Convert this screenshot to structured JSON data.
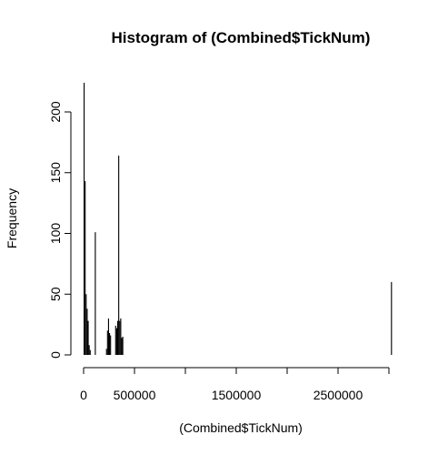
{
  "chart_data": {
    "type": "bar",
    "title": "Histogram of (Combined$TickNum)",
    "xlabel": "(Combined$TickNum)",
    "ylabel": "Frequency",
    "xlim": [
      0,
      3000000
    ],
    "ylim": [
      0,
      225
    ],
    "x_ticks": [
      0,
      500000,
      1000000,
      1500000,
      2000000,
      2500000,
      3000000
    ],
    "x_tick_labels": [
      "0",
      "500000",
      "",
      "1500000",
      "",
      "2500000",
      ""
    ],
    "y_ticks": [
      0,
      50,
      100,
      150,
      200
    ],
    "y_tick_labels": [
      "0",
      "50",
      "100",
      "150",
      "200"
    ],
    "grid": false,
    "bin_width": 10000,
    "bins": [
      {
        "x0": 0,
        "x1": 10000,
        "count": 224
      },
      {
        "x0": 10000,
        "x1": 20000,
        "count": 143
      },
      {
        "x0": 20000,
        "x1": 30000,
        "count": 50
      },
      {
        "x0": 30000,
        "x1": 40000,
        "count": 38
      },
      {
        "x0": 40000,
        "x1": 50000,
        "count": 28
      },
      {
        "x0": 50000,
        "x1": 60000,
        "count": 8
      },
      {
        "x0": 60000,
        "x1": 70000,
        "count": 4
      },
      {
        "x0": 110000,
        "x1": 120000,
        "count": 101
      },
      {
        "x0": 220000,
        "x1": 230000,
        "count": 5
      },
      {
        "x0": 230000,
        "x1": 240000,
        "count": 20
      },
      {
        "x0": 240000,
        "x1": 250000,
        "count": 30
      },
      {
        "x0": 250000,
        "x1": 260000,
        "count": 18
      },
      {
        "x0": 260000,
        "x1": 270000,
        "count": 16
      },
      {
        "x0": 310000,
        "x1": 320000,
        "count": 24
      },
      {
        "x0": 320000,
        "x1": 330000,
        "count": 22
      },
      {
        "x0": 330000,
        "x1": 340000,
        "count": 28
      },
      {
        "x0": 340000,
        "x1": 350000,
        "count": 164
      },
      {
        "x0": 350000,
        "x1": 360000,
        "count": 28
      },
      {
        "x0": 360000,
        "x1": 370000,
        "count": 30
      },
      {
        "x0": 370000,
        "x1": 380000,
        "count": 14
      },
      {
        "x0": 380000,
        "x1": 390000,
        "count": 15
      },
      {
        "x0": 3020000,
        "x1": 3030000,
        "count": 60
      }
    ]
  }
}
